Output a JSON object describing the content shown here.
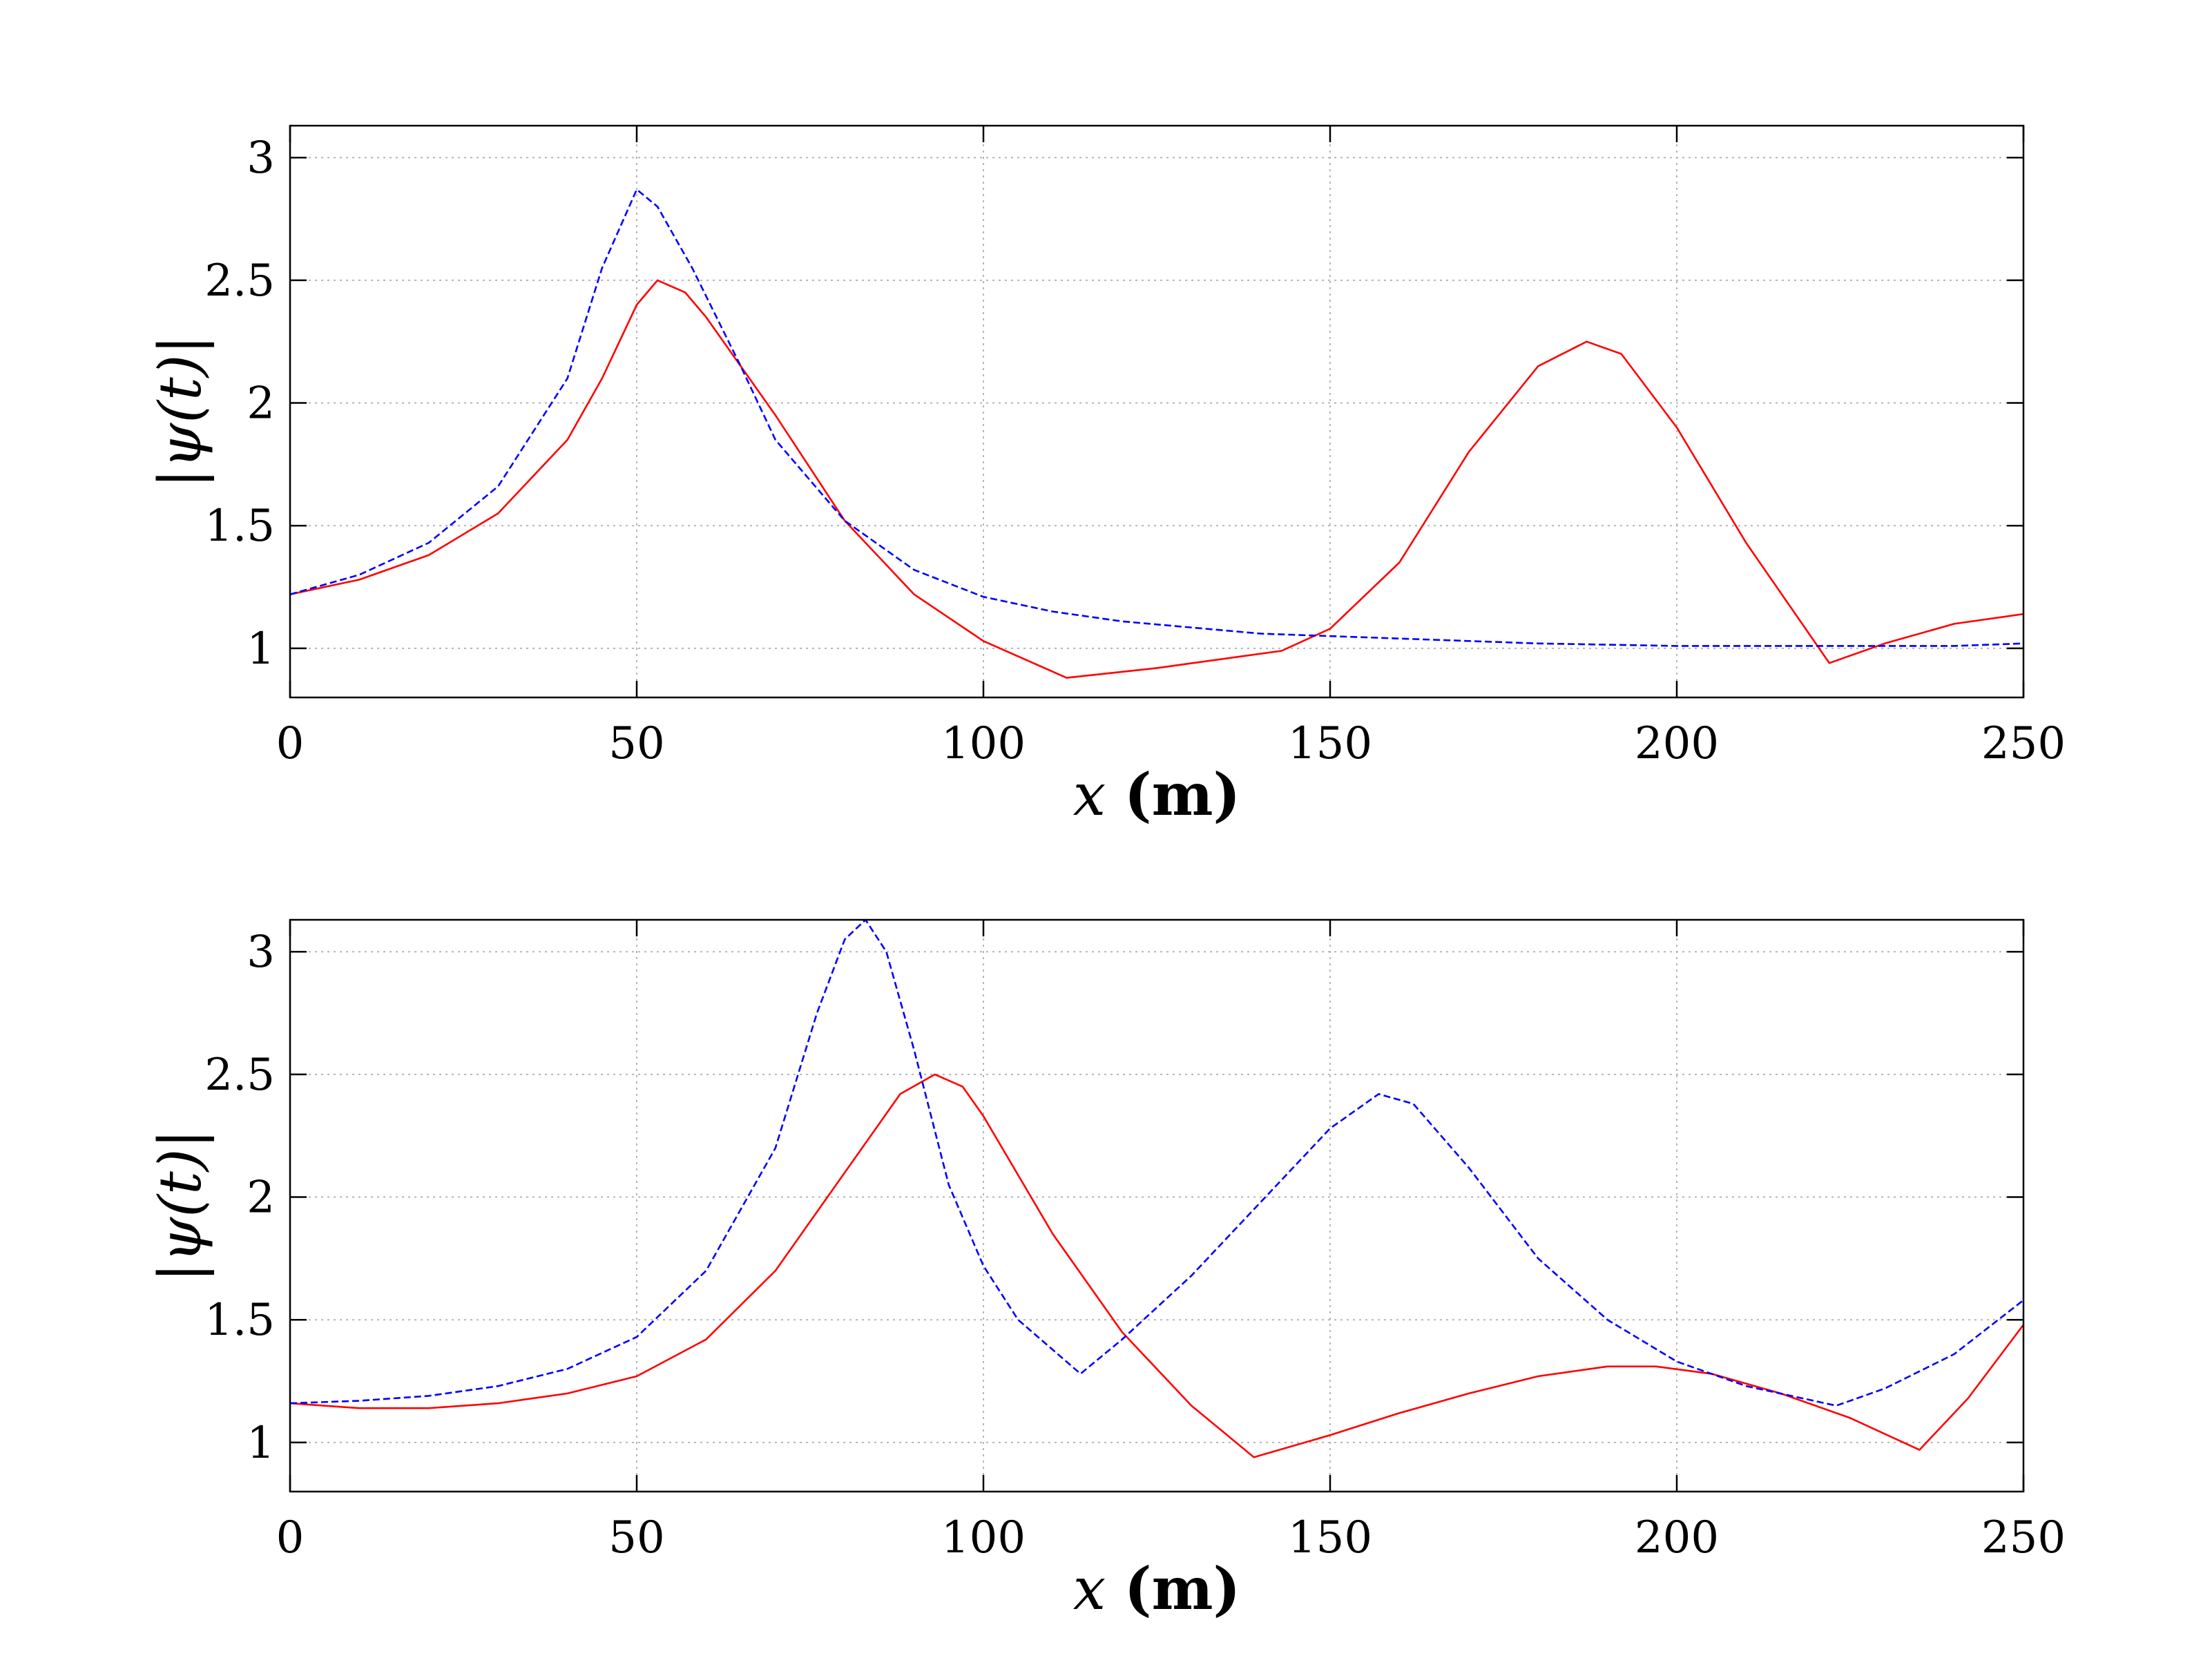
{
  "chart_data": [
    {
      "type": "line",
      "xlabel": "x (m)",
      "xlabel_parts": {
        "var": "x",
        "unit": "(m)"
      },
      "ylabel": "|ψ(t)|",
      "xlim": [
        0,
        250
      ],
      "ylim": [
        0.8,
        3.13
      ],
      "xticks": [
        0,
        50,
        100,
        150,
        200,
        250
      ],
      "yticks": [
        1,
        1.5,
        2,
        2.5,
        3
      ],
      "xtick_labels": [
        "0",
        "50",
        "100",
        "150",
        "200",
        "250"
      ],
      "ytick_labels": [
        "1",
        "1.5",
        "2",
        "2.5",
        "3"
      ],
      "grid": true,
      "series": [
        {
          "color": "#ff0000",
          "style": "solid",
          "points": [
            [
              0,
              1.22
            ],
            [
              10,
              1.28
            ],
            [
              20,
              1.38
            ],
            [
              30,
              1.55
            ],
            [
              40,
              1.85
            ],
            [
              45,
              2.1
            ],
            [
              50,
              2.4
            ],
            [
              53,
              2.5
            ],
            [
              57,
              2.45
            ],
            [
              60,
              2.35
            ],
            [
              70,
              1.95
            ],
            [
              80,
              1.52
            ],
            [
              90,
              1.22
            ],
            [
              100,
              1.03
            ],
            [
              112,
              0.88
            ],
            [
              125,
              0.92
            ],
            [
              143,
              0.99
            ],
            [
              150,
              1.08
            ],
            [
              160,
              1.35
            ],
            [
              170,
              1.8
            ],
            [
              180,
              2.15
            ],
            [
              187,
              2.25
            ],
            [
              192,
              2.2
            ],
            [
              200,
              1.9
            ],
            [
              210,
              1.43
            ],
            [
              222,
              0.94
            ],
            [
              230,
              1.02
            ],
            [
              240,
              1.1
            ],
            [
              250,
              1.14
            ]
          ]
        },
        {
          "color": "#0000ff",
          "style": "dashed",
          "points": [
            [
              0,
              1.22
            ],
            [
              10,
              1.3
            ],
            [
              20,
              1.43
            ],
            [
              30,
              1.66
            ],
            [
              40,
              2.1
            ],
            [
              45,
              2.55
            ],
            [
              50,
              2.87
            ],
            [
              53,
              2.8
            ],
            [
              58,
              2.55
            ],
            [
              65,
              2.15
            ],
            [
              70,
              1.85
            ],
            [
              80,
              1.52
            ],
            [
              90,
              1.32
            ],
            [
              100,
              1.21
            ],
            [
              110,
              1.15
            ],
            [
              120,
              1.11
            ],
            [
              140,
              1.06
            ],
            [
              160,
              1.04
            ],
            [
              180,
              1.02
            ],
            [
              200,
              1.01
            ],
            [
              220,
              1.01
            ],
            [
              240,
              1.01
            ],
            [
              250,
              1.02
            ]
          ]
        }
      ]
    },
    {
      "type": "line",
      "xlabel": "x (m)",
      "xlabel_parts": {
        "var": "x",
        "unit": "(m)"
      },
      "ylabel": "|ψ(t)|",
      "xlim": [
        0,
        250
      ],
      "ylim": [
        0.8,
        3.13
      ],
      "xticks": [
        0,
        50,
        100,
        150,
        200,
        250
      ],
      "yticks": [
        1,
        1.5,
        2,
        2.5,
        3
      ],
      "xtick_labels": [
        "0",
        "50",
        "100",
        "150",
        "200",
        "250"
      ],
      "ytick_labels": [
        "1",
        "1.5",
        "2",
        "2.5",
        "3"
      ],
      "grid": true,
      "series": [
        {
          "color": "#ff0000",
          "style": "solid",
          "points": [
            [
              0,
              1.16
            ],
            [
              10,
              1.14
            ],
            [
              20,
              1.14
            ],
            [
              30,
              1.16
            ],
            [
              40,
              1.2
            ],
            [
              50,
              1.27
            ],
            [
              60,
              1.42
            ],
            [
              70,
              1.7
            ],
            [
              80,
              2.1
            ],
            [
              88,
              2.42
            ],
            [
              93,
              2.5
            ],
            [
              97,
              2.45
            ],
            [
              100,
              2.33
            ],
            [
              110,
              1.85
            ],
            [
              120,
              1.45
            ],
            [
              130,
              1.15
            ],
            [
              139,
              0.94
            ],
            [
              150,
              1.03
            ],
            [
              160,
              1.12
            ],
            [
              170,
              1.2
            ],
            [
              180,
              1.27
            ],
            [
              190,
              1.31
            ],
            [
              197,
              1.31
            ],
            [
              205,
              1.28
            ],
            [
              215,
              1.2
            ],
            [
              225,
              1.1
            ],
            [
              235,
              0.97
            ],
            [
              242,
              1.18
            ],
            [
              250,
              1.48
            ]
          ]
        },
        {
          "color": "#0000ff",
          "style": "dashed",
          "points": [
            [
              0,
              1.16
            ],
            [
              10,
              1.17
            ],
            [
              20,
              1.19
            ],
            [
              30,
              1.23
            ],
            [
              40,
              1.3
            ],
            [
              50,
              1.43
            ],
            [
              60,
              1.7
            ],
            [
              70,
              2.2
            ],
            [
              76,
              2.75
            ],
            [
              80,
              3.05
            ],
            [
              83,
              3.13
            ],
            [
              86,
              3.0
            ],
            [
              90,
              2.6
            ],
            [
              95,
              2.05
            ],
            [
              100,
              1.72
            ],
            [
              105,
              1.5
            ],
            [
              114,
              1.28
            ],
            [
              120,
              1.42
            ],
            [
              130,
              1.68
            ],
            [
              140,
              1.98
            ],
            [
              150,
              2.28
            ],
            [
              157,
              2.42
            ],
            [
              162,
              2.38
            ],
            [
              170,
              2.12
            ],
            [
              180,
              1.75
            ],
            [
              190,
              1.5
            ],
            [
              200,
              1.33
            ],
            [
              210,
              1.23
            ],
            [
              223,
              1.15
            ],
            [
              230,
              1.22
            ],
            [
              240,
              1.36
            ],
            [
              250,
              1.58
            ]
          ]
        }
      ]
    }
  ]
}
